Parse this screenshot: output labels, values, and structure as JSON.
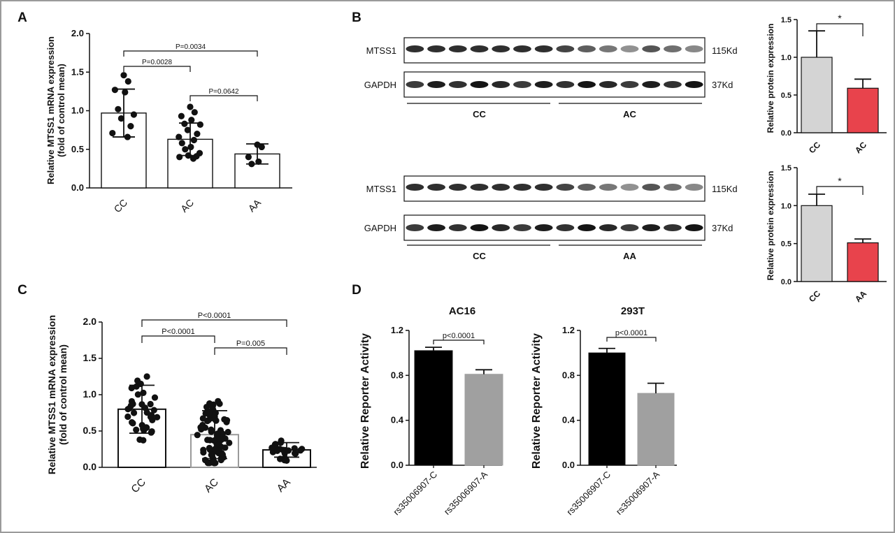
{
  "panels": [
    {
      "id": "A",
      "label": "A"
    },
    {
      "id": "B",
      "label": "B"
    },
    {
      "id": "C",
      "label": "C"
    },
    {
      "id": "D",
      "label": "D"
    }
  ],
  "blots": [
    {
      "rows": [
        {
          "name": "MTSS1",
          "size": "115Kd"
        },
        {
          "name": "GAPDH",
          "size": "37Kd"
        }
      ],
      "groups": [
        "CC",
        "AC"
      ]
    },
    {
      "rows": [
        {
          "name": "MTSS1",
          "size": "115Kd"
        },
        {
          "name": "GAPDH",
          "size": "37Kd"
        }
      ],
      "groups": [
        "CC",
        "AA"
      ]
    }
  ],
  "chart_data": [
    {
      "panel": "A",
      "type": "bar",
      "categories": [
        "CC",
        "AC",
        "AA"
      ],
      "values": [
        0.97,
        0.63,
        0.44
      ],
      "sd": [
        0.31,
        0.21,
        0.13
      ],
      "ylabel": "Relative MTSS1 mRNA expression (fold of control mean)",
      "ylim": [
        0,
        2.0
      ],
      "yticks": [
        "0.0",
        "0.5",
        "1.0",
        "1.5",
        "2.0"
      ],
      "points": [
        [
          1.46,
          1.38,
          1.27,
          1.24,
          1.02,
          0.95,
          0.9,
          0.8,
          0.71,
          0.66
        ],
        [
          1.05,
          0.98,
          0.93,
          0.88,
          0.83,
          0.82,
          0.75,
          0.7,
          0.66,
          0.62,
          0.58,
          0.53,
          0.5,
          0.45,
          0.42,
          0.41,
          0.4,
          0.38
        ],
        [
          0.56,
          0.53,
          0.4,
          0.34,
          0.31
        ]
      ],
      "annotations": [
        {
          "text": "P=0.0034",
          "from": "CC",
          "to": "AA"
        },
        {
          "text": "P=0.0028",
          "from": "CC",
          "to": "AC"
        },
        {
          "text": "P=0.0642",
          "from": "AC",
          "to": "AA"
        }
      ]
    },
    {
      "panel": "B-top",
      "type": "bar",
      "categories": [
        "CC",
        "AC"
      ],
      "values": [
        1.0,
        0.59
      ],
      "sd": [
        0.35,
        0.12
      ],
      "ylabel": "Relative protein expression",
      "ylim": [
        0,
        1.5
      ],
      "yticks": [
        "0.0",
        "0.5",
        "1.0",
        "1.5"
      ],
      "colors": [
        "#d4d4d4",
        "#e8434c"
      ],
      "annotations": [
        {
          "text": "*",
          "from": "CC",
          "to": "AC"
        }
      ]
    },
    {
      "panel": "B-bottom",
      "type": "bar",
      "categories": [
        "CC",
        "AA"
      ],
      "values": [
        1.0,
        0.51
      ],
      "sd": [
        0.15,
        0.05
      ],
      "ylabel": "Relative protein expression",
      "ylim": [
        0,
        1.5
      ],
      "yticks": [
        "0.0",
        "0.5",
        "1.0",
        "1.5"
      ],
      "colors": [
        "#d4d4d4",
        "#e8434c"
      ],
      "annotations": [
        {
          "text": "*",
          "from": "CC",
          "to": "AA"
        }
      ]
    },
    {
      "panel": "C",
      "type": "bar",
      "categories": [
        "CC",
        "AC",
        "AA"
      ],
      "values": [
        0.8,
        0.45,
        0.24
      ],
      "sd": [
        0.33,
        0.33,
        0.1
      ],
      "ylabel": "Relative MTSS1 mRNA expression (fold of control mean)",
      "ylim": [
        0,
        2.0
      ],
      "yticks": [
        "0.0",
        "0.5",
        "1.0",
        "1.5",
        "2.0"
      ],
      "point_counts": [
        36,
        78,
        24
      ],
      "annotations": [
        {
          "text": "P<0.0001",
          "from": "CC",
          "to": "AA"
        },
        {
          "text": "P<0.0001",
          "from": "CC",
          "to": "AC"
        },
        {
          "text": "P=0.005",
          "from": "AC",
          "to": "AA"
        }
      ]
    },
    {
      "panel": "D-left",
      "type": "bar",
      "title": "AC16",
      "categories": [
        "rs35006907-C",
        "rs35006907-A"
      ],
      "values": [
        1.02,
        0.81
      ],
      "sd": [
        0.03,
        0.04
      ],
      "ylabel": "Relative Reporter Activity",
      "ylim": [
        0,
        1.2
      ],
      "yticks": [
        "0.0",
        "0.4",
        "0.8",
        "1.2"
      ],
      "colors": [
        "#000000",
        "#a0a0a0"
      ],
      "annotations": [
        {
          "text": "p<0.0001",
          "from": "rs35006907-C",
          "to": "rs35006907-A"
        }
      ]
    },
    {
      "panel": "D-right",
      "type": "bar",
      "title": "293T",
      "categories": [
        "rs35006907-C",
        "rs35006907-A"
      ],
      "values": [
        1.0,
        0.64
      ],
      "sd": [
        0.04,
        0.09
      ],
      "ylabel": "Relative Reporter Activity",
      "ylim": [
        0,
        1.2
      ],
      "yticks": [
        "0.0",
        "0.4",
        "0.8",
        "1.2"
      ],
      "colors": [
        "#000000",
        "#a0a0a0"
      ],
      "annotations": [
        {
          "text": "p<0.0001",
          "from": "rs35006907-C",
          "to": "rs35006907-A"
        }
      ]
    }
  ]
}
